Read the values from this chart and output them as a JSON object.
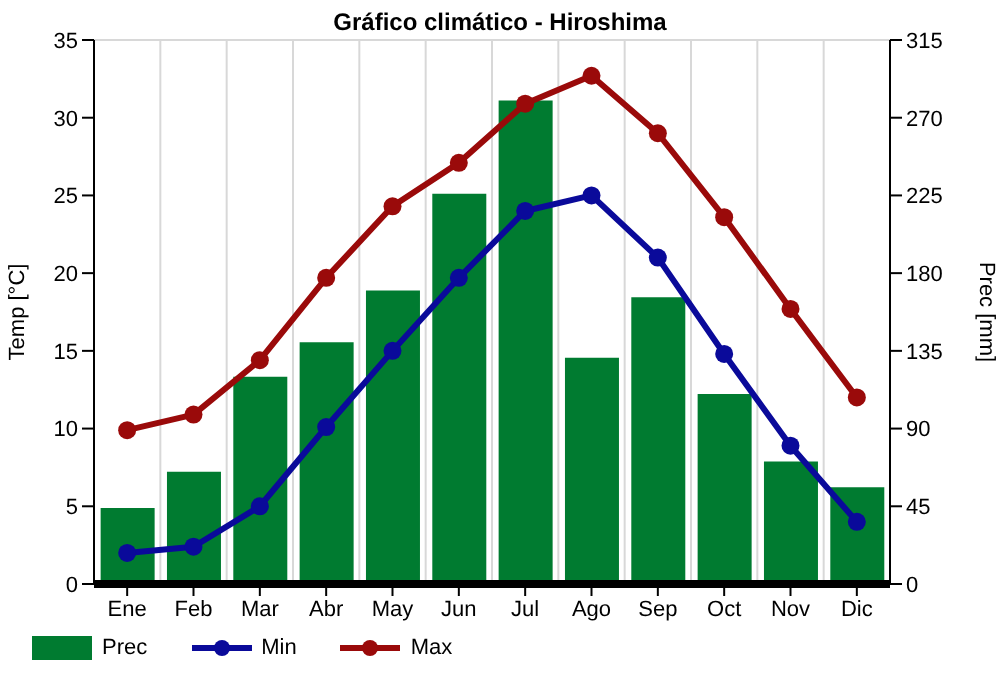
{
  "chart_data": {
    "type": "bar",
    "title": "Gráfico climático - Hiroshima",
    "ylabel": "Temp [°C]",
    "y2label": "Prec [mm]",
    "categories": [
      "Ene",
      "Feb",
      "Mar",
      "Abr",
      "May",
      "Jun",
      "Jul",
      "Ago",
      "Sep",
      "Oct",
      "Nov",
      "Dic"
    ],
    "series": [
      {
        "name": "Prec",
        "axis": "y2",
        "color": "#007b30",
        "values": [
          44,
          65,
          120,
          140,
          170,
          226,
          280,
          131,
          166,
          110,
          71,
          56
        ]
      },
      {
        "name": "Min",
        "type": "line",
        "axis": "y",
        "color": "#0a0a9a",
        "values": [
          2.0,
          2.4,
          5.0,
          10.1,
          15.0,
          19.7,
          24.0,
          25.0,
          21.0,
          14.8,
          8.9,
          4.0
        ]
      },
      {
        "name": "Max",
        "type": "line",
        "axis": "y",
        "color": "#9a0a0a",
        "values": [
          9.9,
          10.9,
          14.4,
          19.7,
          24.3,
          27.1,
          30.9,
          32.7,
          29.0,
          23.6,
          17.7,
          12.0
        ]
      }
    ],
    "ylim": [
      0,
      35
    ],
    "yticks": [
      0,
      5,
      10,
      15,
      20,
      25,
      30,
      35
    ],
    "y2lim": [
      0,
      315
    ],
    "y2ticks": [
      0,
      45,
      90,
      135,
      180,
      225,
      270,
      315
    ],
    "grid": true,
    "legend": "bottom left",
    "marker": "circle",
    "line_style": "solid"
  }
}
